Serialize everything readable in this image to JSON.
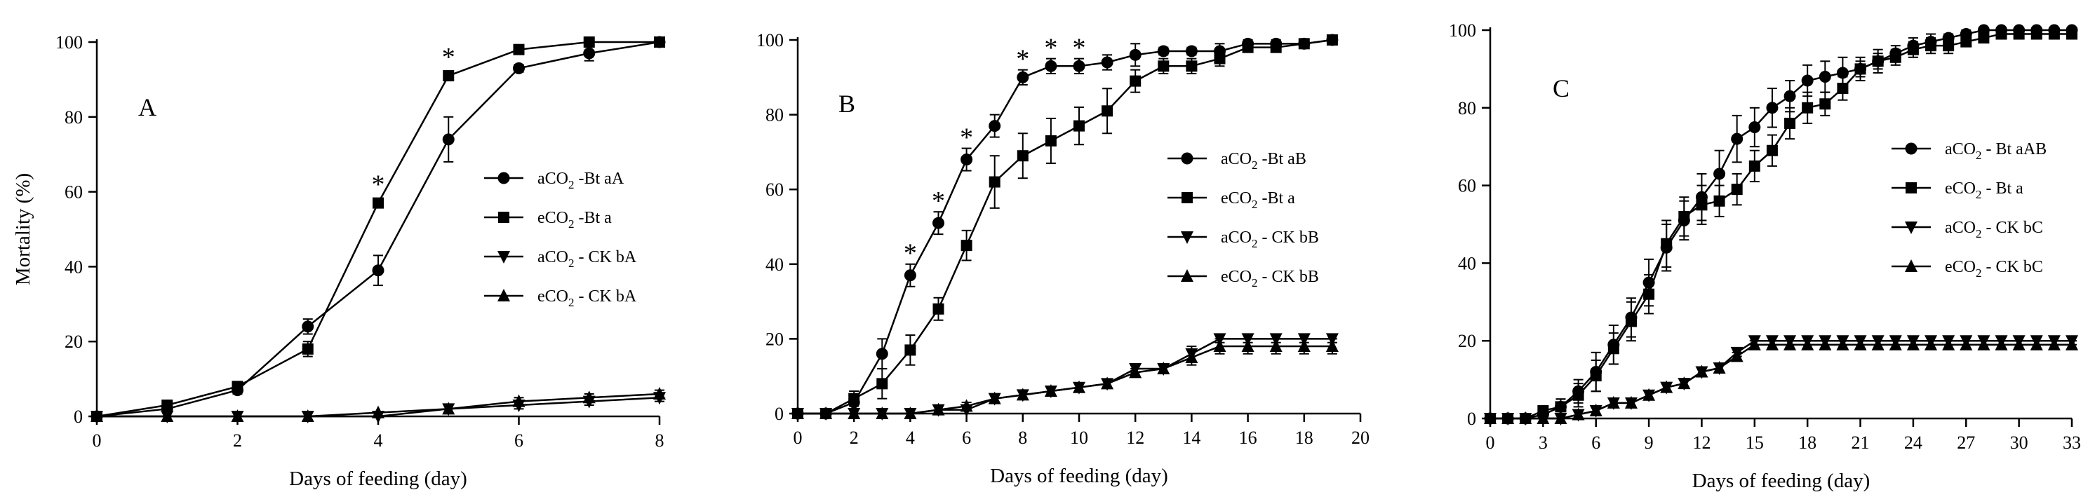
{
  "chart_data": [
    {
      "type": "line",
      "panel_label": "A",
      "xlabel": "Days of feeding (day)",
      "ylabel": "Mortality (%)",
      "xlim": [
        0,
        8
      ],
      "ylim": [
        0,
        100
      ],
      "xticks": [
        0,
        2,
        4,
        6,
        8
      ],
      "yticks": [
        0,
        20,
        40,
        60,
        80,
        100
      ],
      "legend_position": "right",
      "annotations": [
        {
          "text": "*",
          "x": 4,
          "y": 63
        },
        {
          "text": "*",
          "x": 5,
          "y": 97
        }
      ],
      "series": [
        {
          "name": "aCO2-Bt aA",
          "label": {
            "pre": "aCO",
            "sub": "2",
            "post": " -Bt aA"
          },
          "marker": "circle",
          "x": [
            0,
            1,
            2,
            3,
            4,
            5,
            6,
            7,
            8
          ],
          "y": [
            0,
            2,
            7,
            24,
            39,
            74,
            93,
            97,
            100
          ],
          "err": [
            0,
            1,
            1,
            2,
            4,
            6,
            1,
            2,
            0
          ]
        },
        {
          "name": "eCO2-Bt a",
          "label": {
            "pre": "eCO",
            "sub": "2",
            "post": " -Bt a"
          },
          "marker": "square",
          "x": [
            0,
            1,
            2,
            3,
            4,
            5,
            6,
            7,
            8
          ],
          "y": [
            0,
            3,
            8,
            18,
            57,
            91,
            98,
            100,
            100
          ],
          "err": [
            0,
            1,
            1,
            2,
            1,
            1,
            1,
            0,
            0
          ]
        },
        {
          "name": "aCO2 - CK bA",
          "label": {
            "pre": "aCO",
            "sub": "2",
            "post": " - CK bA"
          },
          "marker": "tri-down",
          "x": [
            0,
            1,
            2,
            3,
            4,
            5,
            6,
            7,
            8
          ],
          "y": [
            0,
            0,
            0,
            0,
            0,
            2,
            3,
            4,
            5
          ],
          "err": [
            0,
            0,
            0,
            0,
            0,
            1,
            1,
            1,
            1
          ]
        },
        {
          "name": "eCO2 - CK bA",
          "label": {
            "pre": "eCO",
            "sub": "2",
            "post": " - CK bA"
          },
          "marker": "tri-up",
          "x": [
            0,
            1,
            2,
            3,
            4,
            5,
            6,
            7,
            8
          ],
          "y": [
            0,
            0,
            0,
            0,
            1,
            2,
            4,
            5,
            6
          ],
          "err": [
            0,
            0,
            0,
            0,
            0,
            1,
            1,
            1,
            1
          ]
        }
      ]
    },
    {
      "type": "line",
      "panel_label": "B",
      "xlabel": "Days of feeding (day)",
      "ylabel": "",
      "xlim": [
        0,
        20
      ],
      "ylim": [
        0,
        100
      ],
      "xticks": [
        0,
        2,
        4,
        6,
        8,
        10,
        12,
        14,
        16,
        18,
        20
      ],
      "yticks": [
        0,
        20,
        40,
        60,
        80,
        100
      ],
      "legend_position": "right",
      "annotations": [
        {
          "text": "*",
          "x": 4,
          "y": 44
        },
        {
          "text": "*",
          "x": 5,
          "y": 58
        },
        {
          "text": "*",
          "x": 6,
          "y": 75
        },
        {
          "text": "*",
          "x": 8,
          "y": 96
        },
        {
          "text": "*",
          "x": 9,
          "y": 99
        },
        {
          "text": "*",
          "x": 10,
          "y": 99
        }
      ],
      "series": [
        {
          "name": "aCO2-Bt aB",
          "label": {
            "pre": "aCO",
            "sub": "2",
            "post": " -Bt aB"
          },
          "marker": "circle",
          "x": [
            0,
            1,
            2,
            3,
            4,
            5,
            6,
            7,
            8,
            9,
            10,
            11,
            12,
            13,
            14,
            15,
            16,
            17,
            18,
            19
          ],
          "y": [
            0,
            0,
            3,
            16,
            37,
            51,
            68,
            77,
            90,
            93,
            93,
            94,
            96,
            97,
            97,
            97,
            99,
            99,
            99,
            100
          ],
          "err": [
            0,
            0,
            2,
            4,
            3,
            3,
            3,
            3,
            2,
            2,
            2,
            2,
            3,
            1,
            1,
            2,
            1,
            1,
            1,
            0
          ]
        },
        {
          "name": "eCO2-Bt a",
          "label": {
            "pre": "eCO",
            "sub": "2",
            "post": " -Bt a"
          },
          "marker": "square",
          "x": [
            0,
            1,
            2,
            3,
            4,
            5,
            6,
            7,
            8,
            9,
            10,
            11,
            12,
            13,
            14,
            15,
            16,
            17,
            18,
            19
          ],
          "y": [
            0,
            0,
            4,
            8,
            17,
            28,
            45,
            62,
            69,
            73,
            77,
            81,
            89,
            93,
            93,
            95,
            98,
            98,
            99,
            100
          ],
          "err": [
            0,
            0,
            2,
            4,
            4,
            3,
            4,
            7,
            6,
            6,
            5,
            6,
            3,
            2,
            2,
            2,
            1,
            1,
            1,
            0
          ]
        },
        {
          "name": "aCO2 - CK bB",
          "label": {
            "pre": "aCO",
            "sub": "2",
            "post": " - CK bB"
          },
          "marker": "tri-down",
          "x": [
            0,
            1,
            2,
            3,
            4,
            5,
            6,
            7,
            8,
            9,
            10,
            11,
            12,
            13,
            14,
            15,
            16,
            17,
            18,
            19
          ],
          "y": [
            0,
            0,
            0,
            0,
            0,
            1,
            1,
            4,
            5,
            6,
            7,
            8,
            12,
            12,
            16,
            20,
            20,
            20,
            20,
            20
          ],
          "err": [
            0,
            0,
            0,
            0,
            0,
            1,
            1,
            1,
            1,
            1,
            1,
            1,
            1,
            1,
            2,
            1,
            1,
            1,
            1,
            1
          ]
        },
        {
          "name": "eCO2 - CK bB",
          "label": {
            "pre": "eCO",
            "sub": "2",
            "post": " - CK bB"
          },
          "marker": "tri-up",
          "x": [
            0,
            1,
            2,
            3,
            4,
            5,
            6,
            7,
            8,
            9,
            10,
            11,
            12,
            13,
            14,
            15,
            16,
            17,
            18,
            19
          ],
          "y": [
            0,
            0,
            0,
            0,
            0,
            1,
            2,
            4,
            5,
            6,
            7,
            8,
            11,
            12,
            15,
            18,
            18,
            18,
            18,
            18
          ],
          "err": [
            0,
            0,
            0,
            0,
            0,
            1,
            1,
            1,
            1,
            1,
            1,
            1,
            1,
            1,
            2,
            2,
            2,
            2,
            2,
            2
          ]
        }
      ]
    },
    {
      "type": "line",
      "panel_label": "C",
      "xlabel": "Days of feeding (day)",
      "ylabel": "",
      "xlim": [
        0,
        33
      ],
      "ylim": [
        0,
        100
      ],
      "xticks": [
        0,
        3,
        6,
        9,
        12,
        15,
        18,
        21,
        24,
        27,
        30,
        33
      ],
      "yticks": [
        0,
        20,
        40,
        60,
        80,
        100
      ],
      "legend_position": "right",
      "annotations": [],
      "series": [
        {
          "name": "aCO2-Bt aAB",
          "label": {
            "pre": "aCO",
            "sub": "2",
            "post": " - Bt aAB"
          },
          "marker": "circle",
          "x": [
            0,
            1,
            2,
            3,
            4,
            5,
            6,
            7,
            8,
            9,
            10,
            11,
            12,
            13,
            14,
            15,
            16,
            17,
            18,
            19,
            20,
            21,
            22,
            23,
            24,
            25,
            26,
            27,
            28,
            29,
            30,
            31,
            32,
            33
          ],
          "y": [
            0,
            0,
            0,
            1,
            3,
            7,
            12,
            19,
            26,
            35,
            44,
            51,
            57,
            63,
            72,
            75,
            80,
            83,
            87,
            88,
            89,
            90,
            92,
            94,
            96,
            97,
            98,
            99,
            100,
            100,
            100,
            100,
            100,
            100
          ],
          "err": [
            0,
            0,
            0,
            1,
            2,
            3,
            5,
            5,
            5,
            6,
            6,
            5,
            6,
            6,
            6,
            5,
            5,
            4,
            4,
            4,
            4,
            3,
            3,
            2,
            2,
            2,
            1,
            1,
            0,
            0,
            0,
            0,
            0,
            0
          ]
        },
        {
          "name": "eCO2-Bt a",
          "label": {
            "pre": "eCO",
            "sub": "2",
            "post": " - Bt a"
          },
          "marker": "square",
          "x": [
            0,
            1,
            2,
            3,
            4,
            5,
            6,
            7,
            8,
            9,
            10,
            11,
            12,
            13,
            14,
            15,
            16,
            17,
            18,
            19,
            20,
            21,
            22,
            23,
            24,
            25,
            26,
            27,
            28,
            29,
            30,
            31,
            32,
            33
          ],
          "y": [
            0,
            0,
            0,
            2,
            3,
            6,
            11,
            18,
            25,
            32,
            45,
            52,
            55,
            56,
            59,
            65,
            69,
            76,
            80,
            81,
            85,
            90,
            92,
            93,
            95,
            96,
            96,
            97,
            98,
            99,
            99,
            99,
            99,
            99
          ],
          "err": [
            0,
            0,
            0,
            1,
            2,
            3,
            4,
            4,
            5,
            5,
            6,
            5,
            5,
            4,
            4,
            4,
            4,
            4,
            4,
            3,
            3,
            2,
            2,
            2,
            2,
            2,
            2,
            1,
            1,
            1,
            1,
            1,
            1,
            1
          ]
        },
        {
          "name": "aCO2 - CK bC",
          "label": {
            "pre": "aCO",
            "sub": "2",
            "post": " - CK bC"
          },
          "marker": "tri-down",
          "x": [
            0,
            1,
            2,
            3,
            4,
            5,
            6,
            7,
            8,
            9,
            10,
            11,
            12,
            13,
            14,
            15,
            16,
            17,
            18,
            19,
            20,
            21,
            22,
            23,
            24,
            25,
            26,
            27,
            28,
            29,
            30,
            31,
            32,
            33
          ],
          "y": [
            0,
            0,
            0,
            0,
            0,
            1,
            2,
            4,
            4,
            6,
            8,
            9,
            12,
            13,
            17,
            20,
            20,
            20,
            20,
            20,
            20,
            20,
            20,
            20,
            20,
            20,
            20,
            20,
            20,
            20,
            20,
            20,
            20,
            20
          ],
          "err": [
            0,
            0,
            0,
            0,
            0,
            1,
            1,
            1,
            1,
            1,
            1,
            1,
            1,
            1,
            1,
            1,
            1,
            1,
            1,
            1,
            1,
            1,
            1,
            1,
            1,
            1,
            1,
            1,
            1,
            1,
            1,
            1,
            1,
            1
          ]
        },
        {
          "name": "eCO2 - CK bC",
          "label": {
            "pre": "eCO",
            "sub": "2",
            "post": " - CK bC"
          },
          "marker": "tri-up",
          "x": [
            0,
            1,
            2,
            3,
            4,
            5,
            6,
            7,
            8,
            9,
            10,
            11,
            12,
            13,
            14,
            15,
            16,
            17,
            18,
            19,
            20,
            21,
            22,
            23,
            24,
            25,
            26,
            27,
            28,
            29,
            30,
            31,
            32,
            33
          ],
          "y": [
            0,
            0,
            0,
            0,
            0,
            1,
            2,
            4,
            4,
            6,
            8,
            9,
            12,
            13,
            16,
            19,
            19,
            19,
            19,
            19,
            19,
            19,
            19,
            19,
            19,
            19,
            19,
            19,
            19,
            19,
            19,
            19,
            19,
            19
          ],
          "err": [
            0,
            0,
            0,
            0,
            0,
            1,
            1,
            1,
            1,
            1,
            1,
            1,
            1,
            1,
            1,
            1,
            1,
            1,
            1,
            1,
            1,
            1,
            1,
            1,
            1,
            1,
            1,
            1,
            1,
            1,
            1,
            1,
            1,
            1
          ]
        }
      ]
    }
  ]
}
